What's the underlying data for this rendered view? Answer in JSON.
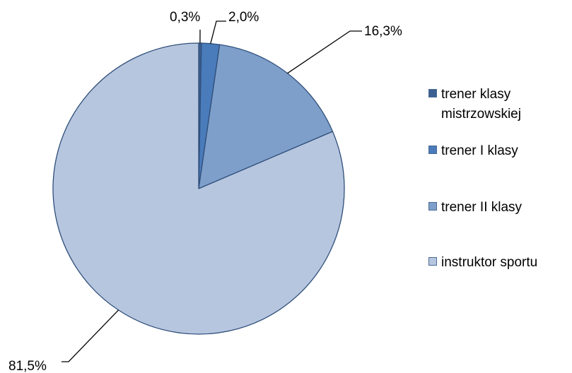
{
  "chart_data": {
    "type": "pie",
    "slices": [
      {
        "name": "trener klasy mistrzowskiej",
        "value": 0.3,
        "label": "0,3%",
        "color": "#3b5f91"
      },
      {
        "name": "trener I klasy",
        "value": 2.0,
        "label": "2,0%",
        "color": "#4a7bba"
      },
      {
        "name": "trener II klasy",
        "value": 16.3,
        "label": "16,3%",
        "color": "#7f9fcb"
      },
      {
        "name": "instruktor sportu",
        "value": 81.5,
        "label": "81,5%",
        "color": "#b7c6df"
      }
    ],
    "start_angle_deg": 0,
    "direction": "clockwise",
    "legend_position": "right",
    "edge_color": "#2f4f7a"
  }
}
